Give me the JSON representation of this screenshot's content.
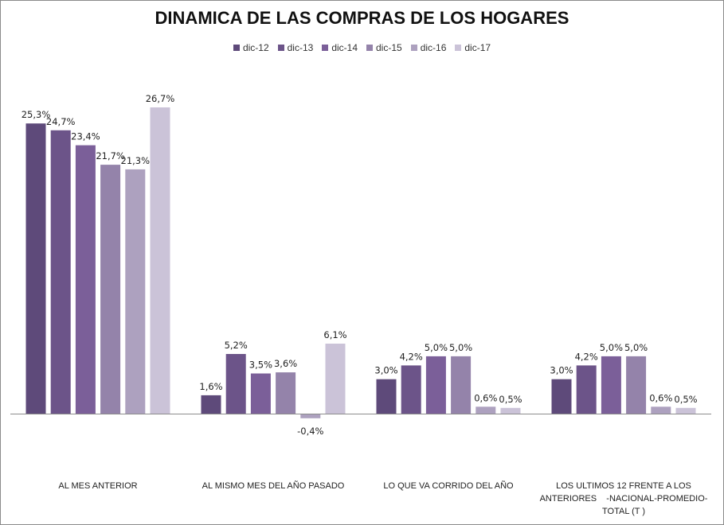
{
  "chart_data": {
    "type": "bar",
    "title": "DINAMICA DE LAS COMPRAS DE LOS HOGARES",
    "xlabel": "",
    "ylabel": "",
    "legend_position": "top",
    "grid": false,
    "value_format": "percent-comma-1dp",
    "categories": [
      [
        "AL MES ANTERIOR"
      ],
      [
        "AL MISMO MES DEL AÑO PASADO"
      ],
      [
        "LO QUE VA CORRIDO DEL AÑO"
      ],
      [
        "LOS ULTIMOS 12 FRENTE A LOS",
        "ANTERIORES    -NACIONAL-PROMEDIO-",
        "TOTAL (T )"
      ]
    ],
    "series": [
      {
        "name": "dic-12",
        "color": "#5e4a7a",
        "values": [
          25.3,
          1.6,
          3.0,
          3.0
        ]
      },
      {
        "name": "dic-13",
        "color": "#6c5489",
        "values": [
          24.7,
          5.2,
          4.2,
          4.2
        ]
      },
      {
        "name": "dic-14",
        "color": "#7b5f99",
        "values": [
          23.4,
          3.5,
          5.0,
          5.0
        ]
      },
      {
        "name": "dic-15",
        "color": "#9483aa",
        "values": [
          21.7,
          3.6,
          5.0,
          5.0
        ]
      },
      {
        "name": "dic-16",
        "color": "#ada1bf",
        "values": [
          21.3,
          -0.4,
          0.6,
          0.6
        ]
      },
      {
        "name": "dic-17",
        "color": "#cbc3d8",
        "values": [
          26.7,
          6.1,
          0.5,
          0.5
        ]
      }
    ],
    "ylim": [
      -1,
      28
    ]
  }
}
